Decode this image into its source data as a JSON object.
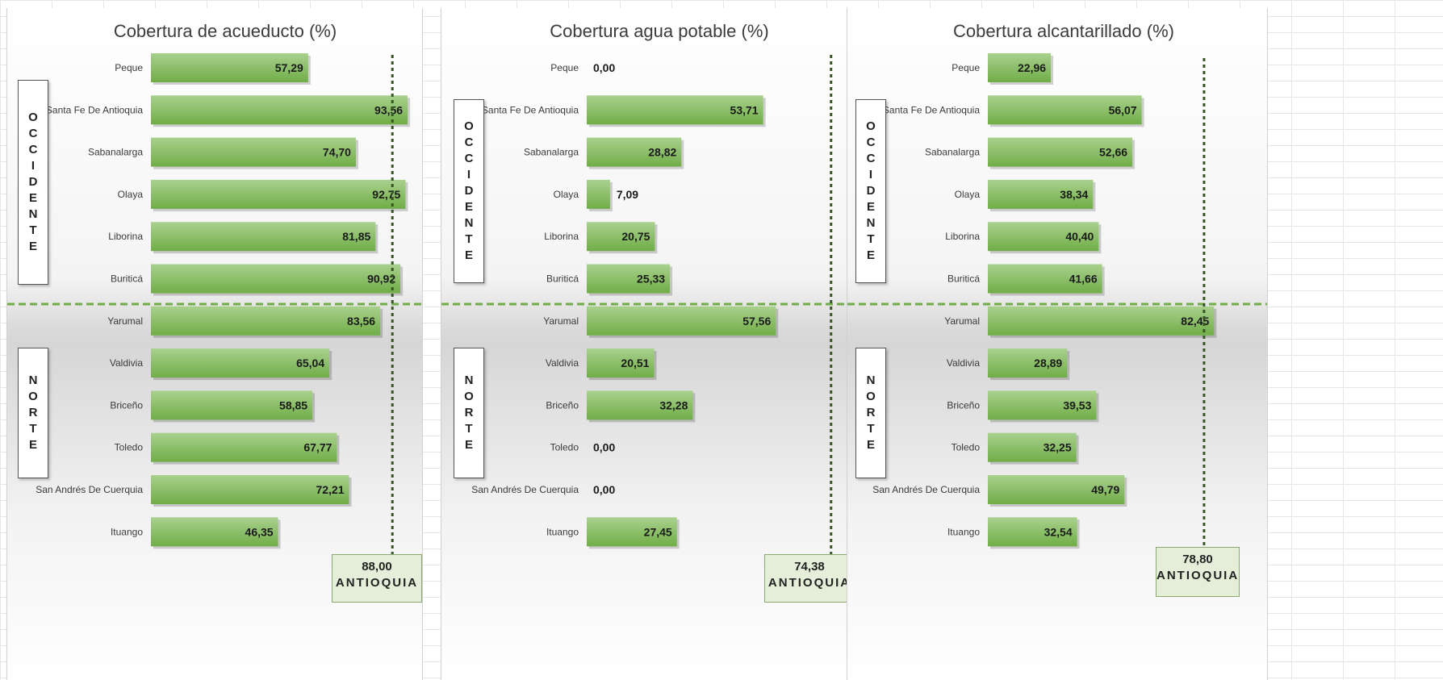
{
  "chart_data": [
    {
      "type": "bar",
      "orientation": "horizontal",
      "title": "Cobertura de acueducto (%)",
      "categories": [
        "Peque",
        "Santa Fe De Antioquia",
        "Sabanalarga",
        "Olaya",
        "Liborina",
        "Buriticá",
        "Yarumal",
        "Valdivia",
        "Briceño",
        "Toledo",
        "San Andrés De Cuerquia",
        "Ituango"
      ],
      "values": [
        57.29,
        93.56,
        74.7,
        92.75,
        81.85,
        90.92,
        83.56,
        65.04,
        58.85,
        67.77,
        72.21,
        46.35
      ],
      "value_labels": [
        "57,29",
        "93,56",
        "74,70",
        "92,75",
        "81,85",
        "90,92",
        "83,56",
        "65,04",
        "58,85",
        "67,77",
        "72,21",
        "46,35"
      ],
      "groups": [
        {
          "name": "OCCIDENTE",
          "count": 6
        },
        {
          "name": "NORTE",
          "count": 6
        }
      ],
      "reference": {
        "label": "ANTIOQUIA",
        "value": 88.0,
        "value_label": "88,00"
      },
      "xlim": [
        0,
        100
      ]
    },
    {
      "type": "bar",
      "orientation": "horizontal",
      "title": "Cobertura agua potable (%)",
      "categories": [
        "Peque",
        "Santa Fe De Antioquia",
        "Sabanalarga",
        "Olaya",
        "Liborina",
        "Buriticá",
        "Yarumal",
        "Valdivia",
        "Briceño",
        "Toledo",
        "San Andrés De Cuerquia",
        "Ituango"
      ],
      "values": [
        0.0,
        53.71,
        28.82,
        7.09,
        20.75,
        25.33,
        57.56,
        20.51,
        32.28,
        0.0,
        0.0,
        27.45
      ],
      "value_labels": [
        "0,00",
        "53,71",
        "28,82",
        "7,09",
        "20,75",
        "25,33",
        "57,56",
        "20,51",
        "32,28",
        "0,00",
        "0,00",
        "27,45"
      ],
      "groups": [
        {
          "name": "OCCIDENTE",
          "count": 6
        },
        {
          "name": "NORTE",
          "count": 6
        }
      ],
      "reference": {
        "label": "ANTIOQUIA",
        "value": 74.38,
        "value_label": "74,38"
      },
      "xlim": [
        0,
        100
      ]
    },
    {
      "type": "bar",
      "orientation": "horizontal",
      "title": "Cobertura alcantarillado (%)",
      "categories": [
        "Peque",
        "Santa Fe De Antioquia",
        "Sabanalarga",
        "Olaya",
        "Liborina",
        "Buriticá",
        "Yarumal",
        "Valdivia",
        "Briceño",
        "Toledo",
        "San Andrés De Cuerquia",
        "Ituango"
      ],
      "values": [
        22.96,
        56.07,
        52.66,
        38.34,
        40.4,
        41.66,
        82.45,
        28.89,
        39.53,
        32.25,
        49.79,
        32.54
      ],
      "value_labels": [
        "22,96",
        "56,07",
        "52,66",
        "38,34",
        "40,40",
        "41,66",
        "82,45",
        "28,89",
        "39,53",
        "32,25",
        "49,79",
        "32,54"
      ],
      "groups": [
        {
          "name": "OCCIDENTE",
          "count": 6
        },
        {
          "name": "NORTE",
          "count": 6
        }
      ],
      "reference": {
        "label": "ANTIOQUIA",
        "value": 78.8,
        "value_label": "78,80"
      },
      "xlim": [
        0,
        100
      ]
    }
  ],
  "colors": {
    "bar_light": "#a9d18e",
    "bar_dark": "#70ad47",
    "divider": "#70ad47",
    "reference_line": "#375623",
    "reference_box": "#e5eed8"
  }
}
